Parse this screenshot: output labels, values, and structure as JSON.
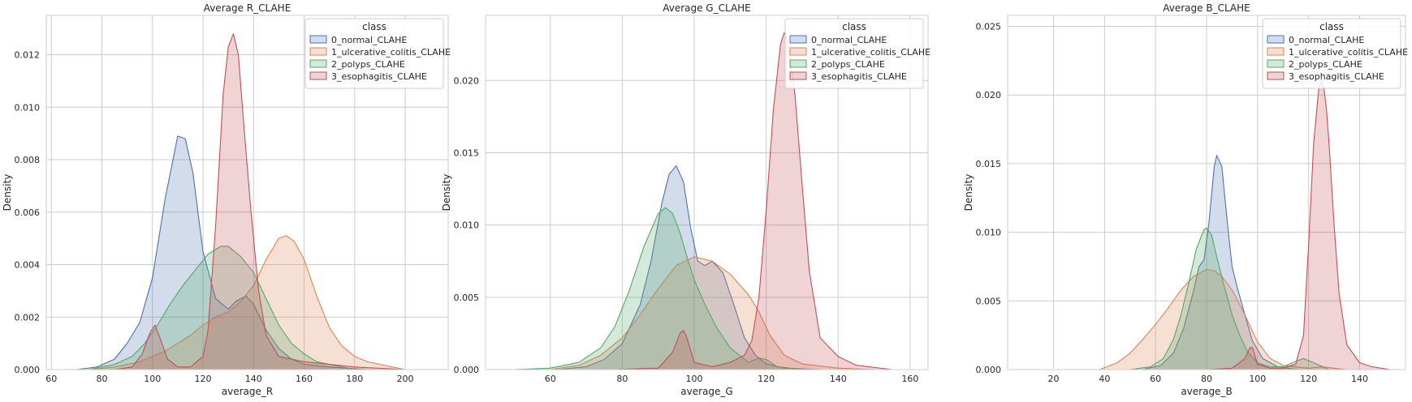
{
  "chart_data": [
    {
      "type": "area",
      "title": "Average R_CLAHE",
      "xlabel": "average_R",
      "ylabel": "Density",
      "xlim": [
        58,
        217
      ],
      "ylim": [
        0,
        0.0135
      ],
      "xticks": [
        60,
        80,
        100,
        120,
        140,
        160,
        180,
        200
      ],
      "xtick_labels": [
        "60",
        "80",
        "100",
        "120",
        "140",
        "160",
        "180",
        "200"
      ],
      "yticks": [
        0,
        0.002,
        0.004,
        0.006,
        0.008,
        0.01,
        0.012
      ],
      "ytick_labels": [
        "0.000",
        "0.002",
        "0.004",
        "0.006",
        "0.008",
        "0.010",
        "0.012"
      ],
      "grid": true,
      "legend": {
        "title": "class",
        "placement": "top-right"
      },
      "series": [
        {
          "name": "0_normal_CLAHE",
          "color": "#4c72b0",
          "x": [
            70,
            78,
            85,
            90,
            95,
            100,
            105,
            110,
            113,
            116,
            120,
            125,
            130,
            133,
            137,
            140,
            145,
            150,
            155,
            160,
            170,
            185
          ],
          "y": [
            0,
            0.0001,
            0.0004,
            0.001,
            0.0018,
            0.0035,
            0.0065,
            0.0089,
            0.0088,
            0.0075,
            0.0045,
            0.0027,
            0.0023,
            0.0026,
            0.0028,
            0.0025,
            0.0015,
            0.0008,
            0.0004,
            0.0002,
            0.0001,
            0
          ]
        },
        {
          "name": "1_ulcerative_colitis_CLAHE",
          "color": "#dd8452",
          "x": [
            75,
            85,
            95,
            100,
            105,
            110,
            115,
            120,
            125,
            130,
            135,
            140,
            145,
            150,
            153,
            156,
            160,
            165,
            170,
            175,
            180,
            185,
            190,
            195,
            200
          ],
          "y": [
            0,
            0.0001,
            0.0003,
            0.0005,
            0.0007,
            0.001,
            0.0013,
            0.0017,
            0.002,
            0.0022,
            0.0026,
            0.0032,
            0.0042,
            0.005,
            0.0051,
            0.0049,
            0.0042,
            0.0028,
            0.0016,
            0.0009,
            0.0005,
            0.0003,
            0.0002,
            0.0001,
            0
          ]
        },
        {
          "name": "2_polyps_CLAHE",
          "color": "#55a868",
          "x": [
            75,
            85,
            92,
            97,
            102,
            107,
            112,
            117,
            122,
            127,
            130,
            135,
            140,
            145,
            150,
            155,
            160,
            165,
            170,
            175,
            180
          ],
          "y": [
            0,
            0.0002,
            0.0005,
            0.001,
            0.0017,
            0.0025,
            0.0032,
            0.0038,
            0.0044,
            0.0047,
            0.0047,
            0.0043,
            0.0037,
            0.0027,
            0.0017,
            0.001,
            0.0006,
            0.0003,
            0.0002,
            0.0001,
            0
          ]
        },
        {
          "name": "3_esophagitis_CLAHE",
          "color": "#c44e52",
          "x": [
            85,
            92,
            96,
            99,
            101,
            103,
            106,
            110,
            115,
            120,
            122,
            125,
            128,
            130,
            132,
            134,
            136,
            139,
            142,
            145,
            150,
            160,
            170,
            180,
            200,
            210
          ],
          "y": [
            0,
            0.0001,
            0.0006,
            0.0014,
            0.0017,
            0.0012,
            0.0004,
            0.0001,
            0.0001,
            0.0005,
            0.0015,
            0.0055,
            0.0105,
            0.0123,
            0.0128,
            0.012,
            0.0095,
            0.006,
            0.003,
            0.0013,
            0.0005,
            0.0003,
            0.0002,
            0.0001,
            0,
            0
          ]
        }
      ]
    },
    {
      "type": "area",
      "title": "Average G_CLAHE",
      "xlabel": "average_G",
      "ylabel": "Density",
      "xlim": [
        42,
        165
      ],
      "ylim": [
        0,
        0.0245
      ],
      "xticks": [
        60,
        80,
        100,
        120,
        140,
        160
      ],
      "xtick_labels": [
        "60",
        "80",
        "100",
        "120",
        "140",
        "160"
      ],
      "yticks": [
        0,
        0.005,
        0.01,
        0.015,
        0.02
      ],
      "ytick_labels": [
        "0.000",
        "0.005",
        "0.010",
        "0.015",
        "0.020"
      ],
      "grid": true,
      "legend": {
        "title": "class",
        "placement": "top-right"
      },
      "series": [
        {
          "name": "0_normal_CLAHE",
          "color": "#4c72b0",
          "x": [
            62,
            70,
            75,
            80,
            85,
            88,
            91,
            93,
            95,
            97,
            99,
            101,
            103,
            105,
            108,
            111,
            114,
            117,
            120,
            125,
            135
          ],
          "y": [
            0,
            0.0002,
            0.0007,
            0.0018,
            0.0045,
            0.0075,
            0.0115,
            0.0135,
            0.0141,
            0.013,
            0.0098,
            0.0075,
            0.0072,
            0.0075,
            0.0067,
            0.0045,
            0.0022,
            0.001,
            0.0004,
            0.0001,
            0
          ]
        },
        {
          "name": "1_ulcerative_colitis_CLAHE",
          "color": "#dd8452",
          "x": [
            60,
            68,
            74,
            80,
            85,
            90,
            95,
            100,
            105,
            110,
            115,
            118,
            121,
            125,
            130,
            140,
            150
          ],
          "y": [
            0,
            0.0003,
            0.001,
            0.0022,
            0.0038,
            0.0056,
            0.0072,
            0.0078,
            0.0075,
            0.0066,
            0.0052,
            0.004,
            0.0024,
            0.001,
            0.0004,
            0.0001,
            0
          ]
        },
        {
          "name": "2_polyps_CLAHE",
          "color": "#55a868",
          "x": [
            50,
            60,
            68,
            74,
            78,
            82,
            86,
            90,
            92,
            94,
            96,
            98,
            100,
            103,
            106,
            110,
            115,
            118,
            120,
            123,
            130
          ],
          "y": [
            0,
            0.0001,
            0.0005,
            0.0015,
            0.003,
            0.0055,
            0.0085,
            0.0108,
            0.0112,
            0.0108,
            0.0095,
            0.0078,
            0.0062,
            0.0045,
            0.003,
            0.0015,
            0.0005,
            0.0008,
            0.0007,
            0.0002,
            0
          ]
        },
        {
          "name": "3_esophagitis_CLAHE",
          "color": "#c44e52",
          "x": [
            78,
            90,
            94,
            96,
            97,
            98,
            100,
            105,
            110,
            114,
            116,
            118,
            120,
            122,
            124,
            125,
            126,
            128,
            130,
            132,
            135,
            140,
            145,
            155
          ],
          "y": [
            0,
            0.0001,
            0.0012,
            0.0025,
            0.0027,
            0.0022,
            0.0005,
            0.0002,
            0.0005,
            0.001,
            0.002,
            0.005,
            0.011,
            0.018,
            0.0225,
            0.0233,
            0.0228,
            0.019,
            0.0128,
            0.0068,
            0.0022,
            0.0009,
            0.0003,
            0
          ]
        }
      ]
    },
    {
      "type": "area",
      "title": "Average B_CLAHE",
      "xlabel": "average_B",
      "ylabel": "Density",
      "xlim": [
        2,
        158
      ],
      "ylim": [
        0,
        0.0258
      ],
      "xticks": [
        20,
        40,
        60,
        80,
        100,
        120,
        140
      ],
      "xtick_labels": [
        "20",
        "40",
        "60",
        "80",
        "100",
        "120",
        "140"
      ],
      "yticks": [
        0,
        0.005,
        0.01,
        0.015,
        0.02,
        0.025
      ],
      "ytick_labels": [
        "0.000",
        "0.005",
        "0.010",
        "0.015",
        "0.020",
        "0.025"
      ],
      "grid": true,
      "legend": {
        "title": "class",
        "placement": "top-right"
      },
      "series": [
        {
          "name": "0_normal_CLAHE",
          "color": "#4c72b0",
          "x": [
            55,
            62,
            67,
            71,
            75,
            77,
            79,
            81,
            83,
            84,
            86,
            88,
            90,
            92,
            95,
            98,
            102,
            108,
            115
          ],
          "y": [
            0,
            0.0003,
            0.0012,
            0.003,
            0.0058,
            0.0075,
            0.008,
            0.0108,
            0.0148,
            0.0156,
            0.0148,
            0.011,
            0.0075,
            0.006,
            0.004,
            0.0021,
            0.0008,
            0.0002,
            0
          ]
        },
        {
          "name": "1_ulcerative_colitis_CLAHE",
          "color": "#dd8452",
          "x": [
            38,
            45,
            50,
            55,
            60,
            65,
            70,
            75,
            80,
            83,
            86,
            90,
            95,
            100,
            105,
            110,
            115,
            120,
            125,
            135
          ],
          "y": [
            0,
            0.0005,
            0.0012,
            0.0022,
            0.0033,
            0.0045,
            0.0058,
            0.0068,
            0.0073,
            0.0072,
            0.0068,
            0.0058,
            0.004,
            0.002,
            0.0008,
            0.0003,
            0.0002,
            0.0001,
            0.0002,
            0
          ]
        },
        {
          "name": "2_polyps_CLAHE",
          "color": "#55a868",
          "x": [
            50,
            58,
            63,
            67,
            70,
            73,
            76,
            79,
            80,
            82,
            84,
            87,
            90,
            93,
            96,
            100,
            105,
            110,
            115,
            118,
            122,
            128
          ],
          "y": [
            0,
            0.0002,
            0.0008,
            0.0022,
            0.004,
            0.0063,
            0.0088,
            0.0102,
            0.0103,
            0.0098,
            0.0082,
            0.006,
            0.004,
            0.0025,
            0.0013,
            0.0005,
            0.0002,
            0.0002,
            0.0006,
            0.0008,
            0.0005,
            0
          ]
        },
        {
          "name": "3_esophagitis_CLAHE",
          "color": "#c44e52",
          "x": [
            80,
            90,
            95,
            97,
            98,
            100,
            105,
            110,
            115,
            118,
            120,
            122,
            124,
            125,
            126,
            127,
            128,
            130,
            132,
            135,
            140,
            145,
            152
          ],
          "y": [
            0,
            0.0001,
            0.0008,
            0.0016,
            0.0016,
            0.0004,
            0.0001,
            0.0001,
            0.0004,
            0.0025,
            0.009,
            0.0165,
            0.0205,
            0.021,
            0.0205,
            0.019,
            0.0165,
            0.0105,
            0.0055,
            0.0018,
            0.0005,
            0.0002,
            0
          ]
        }
      ]
    }
  ]
}
